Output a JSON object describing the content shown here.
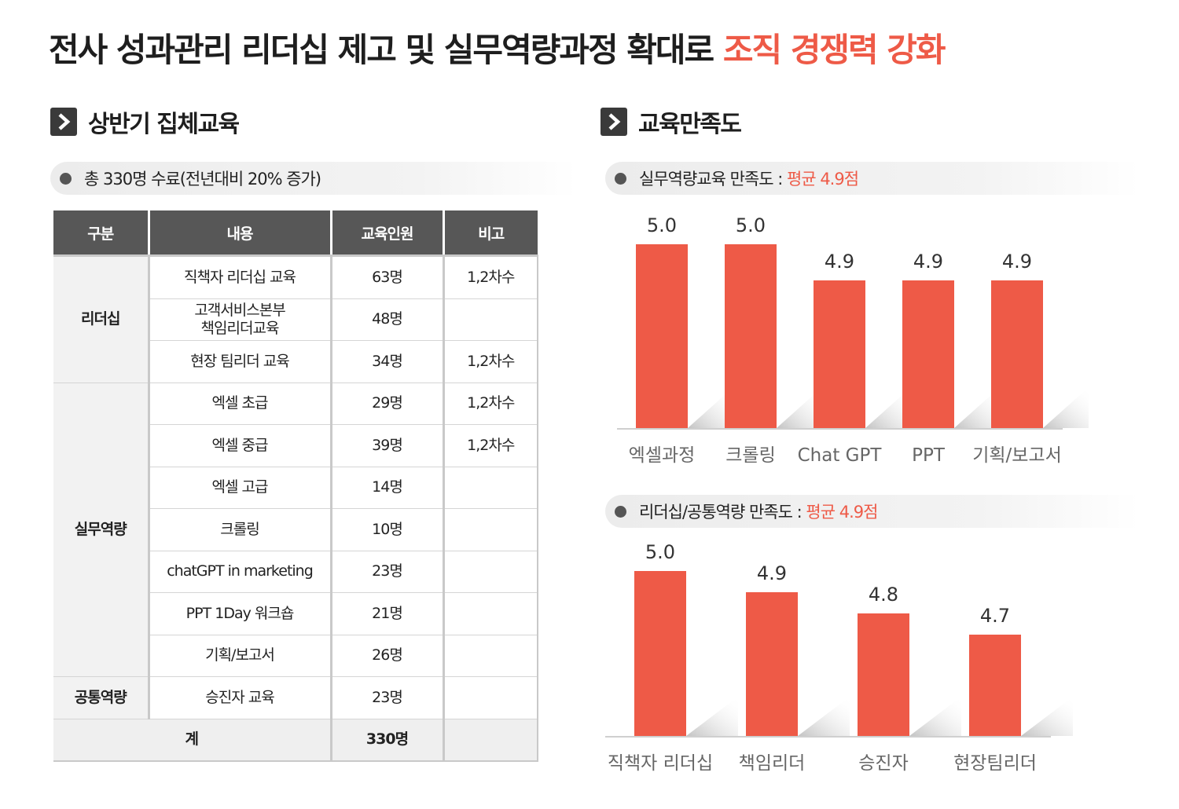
{
  "header": {
    "title_main": "전사 성과관리 리더십 제고 및 실무역량과정 확대로",
    "title_accent": "조직 경쟁력 강화"
  },
  "left": {
    "section_title": "상반기 집체교육",
    "summary": "총 330명 수료(전년대비 20% 증가)",
    "table": {
      "headers": [
        "구분",
        "내용",
        "교육인원",
        "비고"
      ],
      "groups": [
        {
          "category": "리더십",
          "rows": [
            {
              "content": "직책자 리더십 교육",
              "count": "63명",
              "note": "1,2차수"
            },
            {
              "content": "고객서비스본부\n책임리더교육",
              "count": "48명",
              "note": ""
            },
            {
              "content": "현장 팀리더 교육",
              "count": "34명",
              "note": "1,2차수"
            }
          ]
        },
        {
          "category": "실무역량",
          "rows": [
            {
              "content": "엑셀 초급",
              "count": "29명",
              "note": "1,2차수"
            },
            {
              "content": "엑셀 중급",
              "count": "39명",
              "note": "1,2차수"
            },
            {
              "content": "엑셀 고급",
              "count": "14명",
              "note": ""
            },
            {
              "content": "크롤링",
              "count": "10명",
              "note": ""
            },
            {
              "content": "chatGPT in marketing",
              "count": "23명",
              "note": ""
            },
            {
              "content": "PPT 1Day 워크숍",
              "count": "21명",
              "note": ""
            },
            {
              "content": "기획/보고서",
              "count": "26명",
              "note": ""
            }
          ]
        },
        {
          "category": "공통역량",
          "rows": [
            {
              "content": "승진자 교육",
              "count": "23명",
              "note": ""
            }
          ]
        }
      ],
      "total": {
        "label": "계",
        "count": "330명",
        "note": ""
      }
    }
  },
  "right": {
    "section_title": "교육만족도",
    "chart1_label": "실무역량교육 만족도 :",
    "chart1_avg": "평균 4.9점",
    "chart2_label": "리더십/공통역량 만족도 :",
    "chart2_avg": "평균 4.9점"
  },
  "colors": {
    "bar": "#ee5a47",
    "accent": "#ee5a47",
    "header_bg": "#575757"
  },
  "chart_data": [
    {
      "type": "bar",
      "title": "",
      "categories": [
        "엑셀과정",
        "크롤링",
        "Chat GPT",
        "PPT",
        "기획/보고서"
      ],
      "values": [
        5.0,
        5.0,
        4.9,
        4.9,
        4.9
      ],
      "value_labels": [
        "5.0",
        "5.0",
        "4.9",
        "4.9",
        "4.9"
      ],
      "ylim": [
        0,
        5
      ],
      "grid": false,
      "xlabel": "",
      "ylabel": ""
    },
    {
      "type": "bar",
      "title": "",
      "categories": [
        "직책자 리더십",
        "책임리더",
        "승진자",
        "현장팀리더"
      ],
      "values": [
        5.0,
        4.9,
        4.8,
        4.7
      ],
      "value_labels": [
        "5.0",
        "4.9",
        "4.8",
        "4.7"
      ],
      "ylim": [
        0,
        5
      ],
      "grid": false,
      "xlabel": "",
      "ylabel": ""
    }
  ]
}
